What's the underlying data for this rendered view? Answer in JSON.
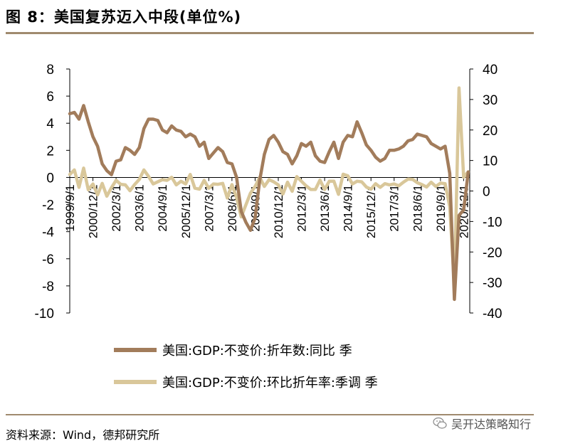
{
  "header": {
    "title": "图 8：美国复苏迈入中段(单位%)"
  },
  "footer": {
    "source": "资料来源：Wind，德邦研究所",
    "watermark": "吴开达策略知行"
  },
  "colors": {
    "series_yoy": "#a27c5b",
    "series_qoq": "#d9c79a",
    "axis": "#000000",
    "rule": "#a08a6e"
  },
  "chart_data": {
    "type": "line",
    "title": "",
    "xlabel": "",
    "ylabel": "",
    "ylim_left": [
      -10,
      8
    ],
    "yticks_left": [
      -10,
      -8,
      -6,
      -4,
      -2,
      0,
      2,
      4,
      6,
      8
    ],
    "ylim_right": [
      -40,
      40
    ],
    "yticks_right": [
      -40,
      -30,
      -20,
      -10,
      0,
      10,
      20,
      30,
      40
    ],
    "x_range": [
      1999.67,
      2021.25
    ],
    "xtick_labels": [
      "1999/9/1",
      "2000/12/1",
      "2002/3/1",
      "2003/6/1",
      "2004/9/1",
      "2005/12/1",
      "2007/3/1",
      "2008/6/1",
      "2009/9/1",
      "2010/12/1",
      "2012/3/1",
      "2013/6/1",
      "2014/9/1",
      "2015/12/1",
      "2017/3/1",
      "2018/6/1",
      "2019/9/1",
      "2020/12/1"
    ],
    "xtick_positions": [
      1999.67,
      2000.92,
      2002.17,
      2003.42,
      2004.67,
      2005.92,
      2007.17,
      2008.42,
      2009.67,
      2010.92,
      2012.17,
      2013.42,
      2014.67,
      2015.92,
      2017.17,
      2018.42,
      2019.67,
      2020.92
    ],
    "legend_position": "bottom",
    "series": [
      {
        "name": "美国:GDP:不变价:折年数:同比 季",
        "axis": "left",
        "x": [
          1999.67,
          1999.92,
          2000.17,
          2000.42,
          2000.67,
          2000.92,
          2001.17,
          2001.42,
          2001.67,
          2001.92,
          2002.17,
          2002.42,
          2002.67,
          2002.92,
          2003.17,
          2003.42,
          2003.67,
          2003.92,
          2004.17,
          2004.42,
          2004.67,
          2004.92,
          2005.17,
          2005.42,
          2005.67,
          2005.92,
          2006.17,
          2006.42,
          2006.67,
          2006.92,
          2007.17,
          2007.42,
          2007.67,
          2007.92,
          2008.17,
          2008.42,
          2008.67,
          2008.92,
          2009.17,
          2009.42,
          2009.67,
          2009.92,
          2010.17,
          2010.42,
          2010.67,
          2010.92,
          2011.17,
          2011.42,
          2011.67,
          2011.92,
          2012.17,
          2012.42,
          2012.67,
          2012.92,
          2013.17,
          2013.42,
          2013.67,
          2013.92,
          2014.17,
          2014.42,
          2014.67,
          2014.92,
          2015.17,
          2015.42,
          2015.67,
          2015.92,
          2016.17,
          2016.42,
          2016.67,
          2016.92,
          2017.17,
          2017.42,
          2017.67,
          2017.92,
          2018.17,
          2018.42,
          2018.67,
          2018.92,
          2019.17,
          2019.42,
          2019.67,
          2019.92,
          2020.17,
          2020.42,
          2020.67,
          2020.92,
          2021.17
        ],
        "values": [
          4.7,
          4.8,
          4.3,
          5.3,
          4.1,
          3.0,
          2.3,
          1.0,
          0.5,
          0.2,
          1.2,
          1.3,
          2.2,
          2.0,
          1.7,
          2.2,
          3.6,
          4.3,
          4.3,
          4.2,
          3.5,
          3.3,
          3.8,
          3.5,
          3.4,
          3.0,
          3.2,
          3.0,
          2.3,
          2.6,
          1.4,
          1.8,
          2.2,
          1.9,
          1.1,
          1.0,
          0.0,
          -2.5,
          -3.3,
          -3.9,
          -3.0,
          -0.2,
          1.7,
          2.8,
          3.1,
          2.6,
          1.9,
          1.7,
          1.0,
          1.6,
          2.5,
          2.3,
          2.6,
          1.6,
          1.2,
          1.1,
          1.9,
          2.6,
          1.4,
          2.6,
          3.1,
          3.0,
          4.1,
          3.3,
          2.4,
          2.0,
          1.5,
          1.2,
          1.4,
          2.0,
          2.0,
          2.1,
          2.3,
          2.7,
          2.8,
          3.2,
          3.1,
          3.0,
          2.5,
          2.3,
          2.1,
          2.3,
          0.3,
          -9.0,
          -2.8,
          -2.4,
          0.4
        ]
      },
      {
        "name": "美国:GDP:不变价:环比折年率:季调 季",
        "axis": "right",
        "x": [
          1999.67,
          1999.92,
          2000.17,
          2000.42,
          2000.67,
          2000.92,
          2001.17,
          2001.42,
          2001.67,
          2001.92,
          2002.17,
          2002.42,
          2002.67,
          2002.92,
          2003.17,
          2003.42,
          2003.67,
          2003.92,
          2004.17,
          2004.42,
          2004.67,
          2004.92,
          2005.17,
          2005.42,
          2005.67,
          2005.92,
          2006.17,
          2006.42,
          2006.67,
          2006.92,
          2007.17,
          2007.42,
          2007.67,
          2007.92,
          2008.17,
          2008.42,
          2008.67,
          2008.92,
          2009.17,
          2009.42,
          2009.67,
          2009.92,
          2010.17,
          2010.42,
          2010.67,
          2010.92,
          2011.17,
          2011.42,
          2011.67,
          2011.92,
          2012.17,
          2012.42,
          2012.67,
          2012.92,
          2013.17,
          2013.42,
          2013.67,
          2013.92,
          2014.17,
          2014.42,
          2014.67,
          2014.92,
          2015.17,
          2015.42,
          2015.67,
          2015.92,
          2016.17,
          2016.42,
          2016.67,
          2016.92,
          2017.17,
          2017.42,
          2017.67,
          2017.92,
          2018.17,
          2018.42,
          2018.67,
          2018.92,
          2019.17,
          2019.42,
          2019.67,
          2019.92,
          2020.17,
          2020.42,
          2020.67,
          2020.92,
          2021.17
        ],
        "values": [
          5.4,
          6.9,
          1.2,
          7.5,
          0.4,
          2.3,
          -1.3,
          2.5,
          -1.7,
          1.1,
          3.5,
          2.2,
          2.0,
          0.1,
          2.1,
          3.8,
          6.9,
          4.8,
          2.3,
          3.0,
          3.7,
          3.5,
          4.5,
          2.0,
          3.2,
          2.3,
          5.4,
          0.9,
          0.6,
          3.5,
          0.9,
          2.3,
          2.2,
          2.5,
          -2.3,
          2.1,
          -2.1,
          -8.5,
          -4.6,
          -0.7,
          1.5,
          4.5,
          1.5,
          3.7,
          3.0,
          2.0,
          -1.0,
          2.9,
          -0.1,
          4.7,
          3.2,
          1.7,
          0.5,
          0.5,
          3.6,
          0.5,
          3.2,
          3.2,
          -1.1,
          5.5,
          5.0,
          2.3,
          3.2,
          3.0,
          1.3,
          0.6,
          2.4,
          1.2,
          2.4,
          2.0,
          2.3,
          1.7,
          2.9,
          3.9,
          3.8,
          2.7,
          2.1,
          1.3,
          2.9,
          1.5,
          2.6,
          2.4,
          -5.1,
          -31.2,
          33.8,
          4.5,
          6.3
        ]
      }
    ]
  }
}
